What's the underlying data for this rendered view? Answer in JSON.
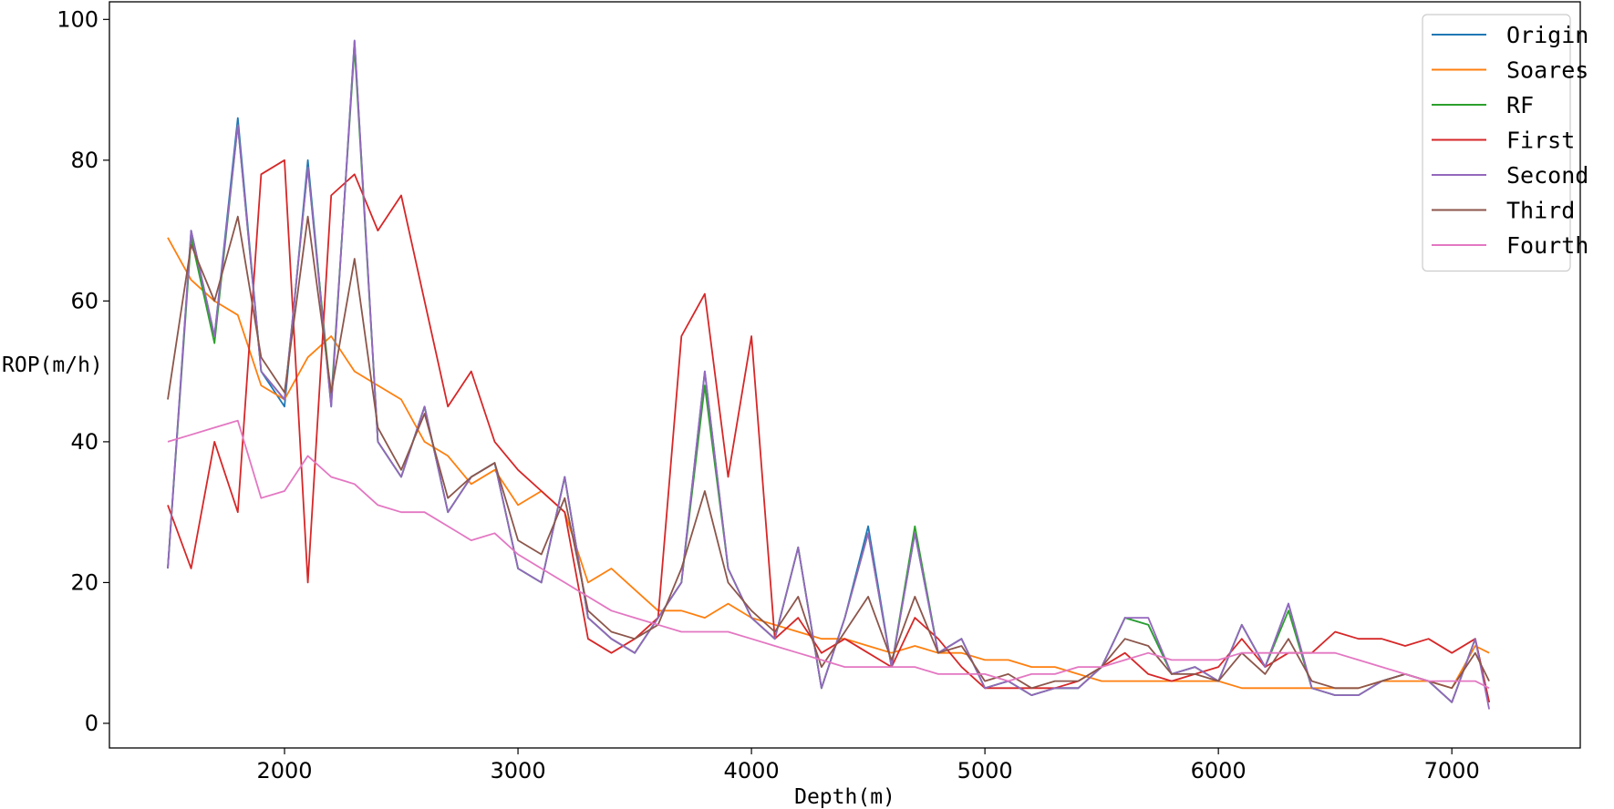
{
  "chart_data": {
    "type": "line",
    "title": "",
    "xlabel": "Depth(m)",
    "ylabel": "ROP(m/h)",
    "xlim": [
      1250,
      7550
    ],
    "ylim": [
      -3.5,
      102.5
    ],
    "xticks": [
      2000,
      3000,
      4000,
      5000,
      6000,
      7000
    ],
    "yticks": [
      0,
      20,
      40,
      60,
      80,
      100
    ],
    "grid": false,
    "legend_position": "top-right",
    "colors": {
      "Origin": "#1f77b4",
      "Soares": "#ff7f0e",
      "RF": "#2ca02c",
      "First": "#d62728",
      "Second": "#9467bd",
      "Third": "#8c564b",
      "Fourth": "#e377c2"
    },
    "x": [
      1500,
      1600,
      1700,
      1800,
      1900,
      2000,
      2100,
      2200,
      2300,
      2400,
      2500,
      2600,
      2700,
      2800,
      2900,
      3000,
      3100,
      3200,
      3300,
      3400,
      3500,
      3600,
      3700,
      3800,
      3900,
      4000,
      4100,
      4200,
      4300,
      4400,
      4500,
      4600,
      4700,
      4800,
      4900,
      5000,
      5100,
      5200,
      5300,
      5400,
      5500,
      5600,
      5700,
      5800,
      5900,
      6000,
      6100,
      6200,
      6300,
      6400,
      6500,
      6600,
      6700,
      6800,
      6900,
      7000,
      7100,
      7160
    ],
    "series": [
      {
        "name": "Origin",
        "values": [
          22,
          70,
          55,
          86,
          50,
          45,
          80,
          45,
          97,
          40,
          35,
          45,
          30,
          35,
          37,
          22,
          20,
          35,
          15,
          12,
          10,
          15,
          20,
          50,
          22,
          15,
          12,
          25,
          5,
          15,
          28,
          8,
          27,
          10,
          12,
          5,
          6,
          4,
          5,
          5,
          8,
          15,
          14,
          7,
          8,
          6,
          14,
          8,
          17,
          5,
          4,
          4,
          6,
          7,
          6,
          3,
          12,
          3
        ]
      },
      {
        "name": "Soares",
        "values": [
          69,
          63,
          60,
          58,
          48,
          46,
          52,
          55,
          50,
          48,
          46,
          40,
          38,
          34,
          36,
          31,
          33,
          30,
          20,
          22,
          19,
          16,
          16,
          15,
          17,
          15,
          14,
          13,
          12,
          12,
          11,
          10,
          11,
          10,
          10,
          9,
          9,
          8,
          8,
          7,
          6,
          6,
          6,
          6,
          6,
          6,
          5,
          5,
          5,
          5,
          5,
          5,
          6,
          6,
          6,
          5,
          11,
          10
        ]
      },
      {
        "name": "RF",
        "values": [
          22,
          69,
          54,
          85,
          50,
          46,
          79,
          46,
          96,
          40,
          35,
          45,
          30,
          35,
          37,
          22,
          20,
          35,
          15,
          12,
          10,
          15,
          20,
          48,
          22,
          15,
          12,
          25,
          5,
          15,
          27,
          8,
          28,
          10,
          12,
          5,
          6,
          4,
          5,
          5,
          8,
          15,
          14,
          7,
          8,
          6,
          14,
          8,
          16,
          5,
          4,
          4,
          6,
          7,
          6,
          3,
          12,
          3
        ]
      },
      {
        "name": "First",
        "values": [
          31,
          22,
          40,
          30,
          78,
          80,
          20,
          75,
          78,
          70,
          75,
          60,
          45,
          50,
          40,
          36,
          33,
          30,
          12,
          10,
          12,
          15,
          55,
          61,
          35,
          55,
          12,
          15,
          10,
          12,
          10,
          8,
          15,
          12,
          8,
          5,
          5,
          5,
          5,
          6,
          8,
          10,
          7,
          6,
          7,
          8,
          12,
          8,
          10,
          10,
          13,
          12,
          12,
          11,
          12,
          10,
          12,
          3
        ]
      },
      {
        "name": "Second",
        "values": [
          22,
          70,
          55,
          85,
          50,
          46,
          79,
          45,
          97,
          40,
          35,
          45,
          30,
          35,
          37,
          22,
          20,
          35,
          15,
          12,
          10,
          15,
          20,
          50,
          22,
          15,
          12,
          25,
          5,
          15,
          27,
          8,
          27,
          10,
          12,
          5,
          6,
          4,
          5,
          5,
          8,
          15,
          15,
          7,
          8,
          6,
          14,
          8,
          17,
          5,
          4,
          4,
          6,
          7,
          6,
          3,
          12,
          2
        ]
      },
      {
        "name": "Third",
        "values": [
          46,
          68,
          60,
          72,
          52,
          47,
          72,
          47,
          66,
          42,
          36,
          44,
          32,
          35,
          37,
          26,
          24,
          32,
          16,
          13,
          12,
          14,
          22,
          33,
          20,
          16,
          13,
          18,
          8,
          13,
          18,
          9,
          18,
          10,
          11,
          6,
          7,
          5,
          6,
          6,
          8,
          12,
          11,
          7,
          7,
          6,
          10,
          7,
          12,
          6,
          5,
          5,
          6,
          7,
          6,
          5,
          10,
          6
        ]
      },
      {
        "name": "Fourth",
        "values": [
          40,
          41,
          42,
          43,
          32,
          33,
          38,
          35,
          34,
          31,
          30,
          30,
          28,
          26,
          27,
          24,
          22,
          20,
          18,
          16,
          15,
          14,
          13,
          13,
          13,
          12,
          11,
          10,
          9,
          8,
          8,
          8,
          8,
          7,
          7,
          7,
          6,
          7,
          7,
          8,
          8,
          9,
          10,
          9,
          9,
          9,
          10,
          10,
          10,
          10,
          10,
          9,
          8,
          7,
          6,
          6,
          6,
          5
        ]
      }
    ]
  }
}
